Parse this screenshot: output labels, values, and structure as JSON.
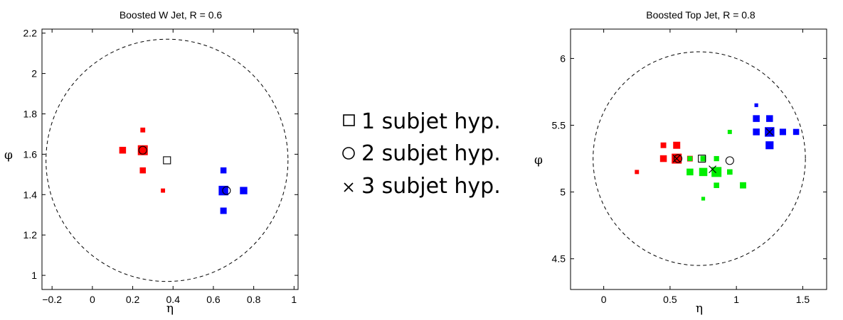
{
  "legend": {
    "items": [
      {
        "symbol": "square",
        "label": "1 subjet hyp."
      },
      {
        "symbol": "circle",
        "label": "2 subjet hyp."
      },
      {
        "symbol": "cross",
        "label": "3 subjet hyp."
      }
    ]
  },
  "chart_data": [
    {
      "type": "scatter",
      "title": "Boosted W Jet, R = 0.6",
      "xlabel": "η",
      "ylabel": "φ",
      "xlim": [
        -0.25,
        1.02
      ],
      "ylim": [
        0.93,
        2.22
      ],
      "xticks": [
        -0.2,
        0,
        0.2,
        0.4,
        0.6,
        0.8,
        1
      ],
      "xtick_labels": [
        "−0.2",
        "0",
        "0.2",
        "0.4",
        "0.6",
        "0.8",
        "1"
      ],
      "yticks": [
        1,
        1.2,
        1.4,
        1.6,
        1.8,
        2,
        2.2
      ],
      "ytick_labels": [
        "1",
        "1.2",
        "1.4",
        "1.6",
        "1.8",
        "2",
        "2.2"
      ],
      "grid": false,
      "jet_circle": {
        "center": [
          0.37,
          1.57
        ],
        "radius": 0.6,
        "style": "dashed"
      },
      "colors": {
        "red": "#ff0000",
        "blue": "#0000ff",
        "green": "#00ee00"
      },
      "points": [
        {
          "x": 0.25,
          "y": 1.62,
          "color": "red",
          "weight": 1.0
        },
        {
          "x": 0.15,
          "y": 1.62,
          "color": "red",
          "weight": 0.35
        },
        {
          "x": 0.25,
          "y": 1.72,
          "color": "red",
          "weight": 0.12
        },
        {
          "x": 0.25,
          "y": 1.52,
          "color": "red",
          "weight": 0.25
        },
        {
          "x": 0.35,
          "y": 1.42,
          "color": "red",
          "weight": 0.07
        },
        {
          "x": 0.65,
          "y": 1.42,
          "color": "blue",
          "weight": 0.9
        },
        {
          "x": 0.75,
          "y": 1.42,
          "color": "blue",
          "weight": 0.45
        },
        {
          "x": 0.65,
          "y": 1.52,
          "color": "blue",
          "weight": 0.25
        },
        {
          "x": 0.65,
          "y": 1.32,
          "color": "blue",
          "weight": 0.3
        }
      ],
      "axes": [
        {
          "type": "square",
          "x": 0.37,
          "y": 1.57
        },
        {
          "type": "circle",
          "x": 0.25,
          "y": 1.62
        },
        {
          "type": "circle",
          "x": 0.665,
          "y": 1.42
        }
      ]
    },
    {
      "type": "scatter",
      "title": "Boosted Top Jet, R = 0.8",
      "xlabel": "η",
      "ylabel": "φ",
      "xlim": [
        -0.25,
        1.68
      ],
      "ylim": [
        4.27,
        6.22
      ],
      "xticks": [
        0,
        0.5,
        1,
        1.5
      ],
      "xtick_labels": [
        "0",
        "0.5",
        "1",
        "1.5"
      ],
      "yticks": [
        4.5,
        5,
        5.5,
        6
      ],
      "ytick_labels": [
        "4.5",
        "5",
        "5.5",
        "6"
      ],
      "grid": false,
      "jet_circle": {
        "center": [
          0.72,
          5.25
        ],
        "radius": 0.8,
        "style": "dashed"
      },
      "colors": {
        "red": "#ff0000",
        "blue": "#0000ff",
        "green": "#00ee00"
      },
      "points": [
        {
          "x": 0.55,
          "y": 5.25,
          "color": "red",
          "weight": 1.0
        },
        {
          "x": 0.45,
          "y": 5.25,
          "color": "red",
          "weight": 0.35
        },
        {
          "x": 0.45,
          "y": 5.35,
          "color": "red",
          "weight": 0.2
        },
        {
          "x": 0.55,
          "y": 5.35,
          "color": "red",
          "weight": 0.4
        },
        {
          "x": 0.25,
          "y": 5.15,
          "color": "red",
          "weight": 0.07
        },
        {
          "x": 0.65,
          "y": 5.25,
          "color": "red",
          "weight": 0.2
        },
        {
          "x": 0.75,
          "y": 5.15,
          "color": "green",
          "weight": 0.6
        },
        {
          "x": 0.85,
          "y": 5.15,
          "color": "green",
          "weight": 1.0
        },
        {
          "x": 0.65,
          "y": 5.15,
          "color": "green",
          "weight": 0.35
        },
        {
          "x": 0.75,
          "y": 5.25,
          "color": "green",
          "weight": 0.2
        },
        {
          "x": 0.85,
          "y": 5.25,
          "color": "green",
          "weight": 0.15
        },
        {
          "x": 0.65,
          "y": 5.25,
          "color": "green",
          "weight": 0.12
        },
        {
          "x": 0.95,
          "y": 5.15,
          "color": "green",
          "weight": 0.18
        },
        {
          "x": 0.85,
          "y": 5.05,
          "color": "green",
          "weight": 0.18
        },
        {
          "x": 1.05,
          "y": 5.05,
          "color": "green",
          "weight": 0.28
        },
        {
          "x": 0.95,
          "y": 5.45,
          "color": "green",
          "weight": 0.07
        },
        {
          "x": 0.75,
          "y": 4.95,
          "color": "green",
          "weight": 0.04
        },
        {
          "x": 1.25,
          "y": 5.45,
          "color": "blue",
          "weight": 0.9
        },
        {
          "x": 1.15,
          "y": 5.55,
          "color": "blue",
          "weight": 0.35
        },
        {
          "x": 1.25,
          "y": 5.55,
          "color": "blue",
          "weight": 0.35
        },
        {
          "x": 1.15,
          "y": 5.45,
          "color": "blue",
          "weight": 0.35
        },
        {
          "x": 1.35,
          "y": 5.45,
          "color": "blue",
          "weight": 0.3
        },
        {
          "x": 1.45,
          "y": 5.45,
          "color": "blue",
          "weight": 0.25
        },
        {
          "x": 1.25,
          "y": 5.35,
          "color": "blue",
          "weight": 0.55
        },
        {
          "x": 1.15,
          "y": 5.65,
          "color": "blue",
          "weight": 0.04
        }
      ],
      "axes": [
        {
          "type": "square",
          "x": 0.74,
          "y": 5.25
        },
        {
          "type": "circle",
          "x": 0.56,
          "y": 5.25
        },
        {
          "type": "circle",
          "x": 0.95,
          "y": 5.235
        },
        {
          "type": "cross",
          "x": 0.55,
          "y": 5.25
        },
        {
          "type": "cross",
          "x": 0.82,
          "y": 5.17
        },
        {
          "type": "cross",
          "x": 1.25,
          "y": 5.45
        }
      ]
    }
  ]
}
